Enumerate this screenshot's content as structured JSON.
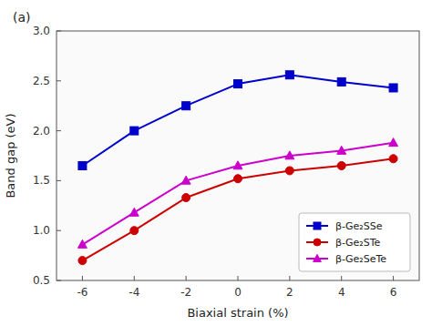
{
  "chart_data": {
    "type": "line",
    "xlabel": "Biaxial strain (%)",
    "ylabel": "Band gap (eV)",
    "annotation": "(a)",
    "x": [
      -6,
      -4,
      -2,
      0,
      2,
      4,
      6
    ],
    "xlim": [
      -7,
      7
    ],
    "ylim": [
      0.5,
      3.0
    ],
    "xticks": [
      -6,
      -4,
      -2,
      0,
      2,
      4,
      6
    ],
    "yticks": [
      0.5,
      {
        "value": 1.0,
        "label": "1.0"
      },
      1.5,
      {
        "value": 2.0,
        "label": "2.0"
      },
      2.5,
      {
        "value": 3.0,
        "label": "3.0"
      }
    ],
    "legend": "lower right",
    "series": [
      {
        "name": "β-Ge₂SSe",
        "color": "#0000cc",
        "marker": "square",
        "values": [
          1.65,
          2.0,
          2.25,
          2.47,
          2.56,
          2.49,
          2.43
        ]
      },
      {
        "name": "β-Ge₂STe",
        "color": "#cc0000",
        "marker": "circle",
        "values": [
          0.7,
          1.0,
          1.33,
          1.52,
          1.6,
          1.65,
          1.72
        ]
      },
      {
        "name": "β-Ge₂SeTe",
        "color": "#cc00cc",
        "marker": "triangle",
        "values": [
          0.86,
          1.18,
          1.5,
          1.65,
          1.75,
          1.8,
          1.88
        ]
      }
    ]
  }
}
